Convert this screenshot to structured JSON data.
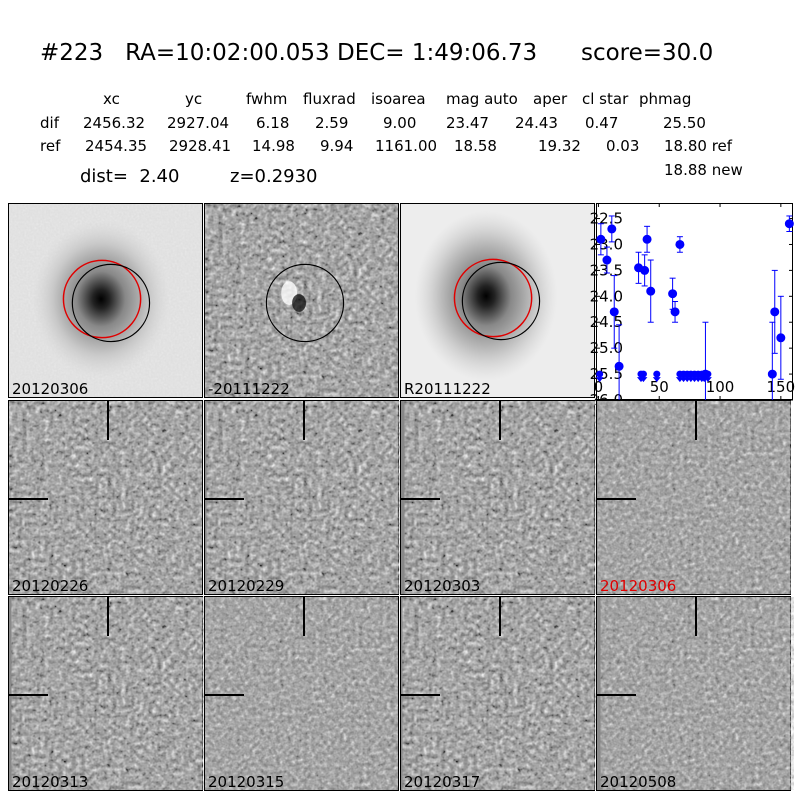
{
  "title": "#223   RA=10:02:00.053 DEC= 1:49:06.73      score=30.0",
  "columns": [
    "xc",
    "yc",
    "fwhm",
    "fluxrad",
    "isoarea",
    "mag auto",
    "aper",
    "cl star",
    "phmag"
  ],
  "rows": [
    {
      "label": "dif",
      "values": [
        "2456.32",
        "2927.04",
        "6.18",
        "2.59",
        "9.00",
        "23.47",
        "24.43",
        "0.47",
        "25.50"
      ]
    },
    {
      "label": "ref",
      "values": [
        "2454.35",
        "2928.41",
        "14.98",
        "9.94",
        "1161.00",
        "18.58",
        "19.32",
        "0.03",
        "18.80 ref"
      ]
    }
  ],
  "phmag_new": "18.88 new",
  "dist": "dist=  2.40",
  "z": "z=0.2930",
  "stamps_top": [
    "20120306",
    "-20111222",
    "R20111222"
  ],
  "stamps_grid": [
    {
      "label": "20120226",
      "highlight": false
    },
    {
      "label": "20120229",
      "highlight": false
    },
    {
      "label": "20120303",
      "highlight": false
    },
    {
      "label": "20120306",
      "highlight": true
    },
    {
      "label": "20120313",
      "highlight": false
    },
    {
      "label": "20120315",
      "highlight": false
    },
    {
      "label": "20120317",
      "highlight": false
    },
    {
      "label": "20120508",
      "highlight": false
    }
  ],
  "colors": {
    "highlight": "#e00000",
    "points": "#0000ff",
    "ref_circle": "#e00000",
    "dif_circle": "#000000"
  },
  "chart_data": {
    "type": "scatter",
    "title": "",
    "xlabel": "",
    "ylabel": "",
    "xlim": [
      -2,
      160
    ],
    "ylim": [
      26.0,
      22.2
    ],
    "y_inverted": true,
    "x_ticks": [
      0,
      50,
      100,
      150
    ],
    "y_ticks": [
      "22.5",
      "23.0",
      "23.5",
      "24.0",
      "24.5",
      "25.0",
      "25.5",
      "26.0"
    ],
    "detections": [
      {
        "x": 2,
        "y": 22.9,
        "err": 0.3
      },
      {
        "x": 7,
        "y": 23.3,
        "err": 0.25
      },
      {
        "x": 11,
        "y": 22.7,
        "err": 0.25
      },
      {
        "x": 13,
        "y": 24.3,
        "err": 0.7
      },
      {
        "x": 17,
        "y": 25.35,
        "err": 0.8
      },
      {
        "x": 33,
        "y": 23.45,
        "err": 0.3
      },
      {
        "x": 38,
        "y": 23.5,
        "err": 0.3
      },
      {
        "x": 40,
        "y": 22.9,
        "err": 0.25
      },
      {
        "x": 43,
        "y": 23.9,
        "err": 0.6
      },
      {
        "x": 61,
        "y": 23.95,
        "err": 0.3
      },
      {
        "x": 63,
        "y": 24.3,
        "err": 0.2
      },
      {
        "x": 67,
        "y": 23.0,
        "err": 0.15
      },
      {
        "x": 88,
        "y": 25.5,
        "err": 1.0
      },
      {
        "x": 143,
        "y": 25.5,
        "err": 1.0
      },
      {
        "x": 145,
        "y": 24.3,
        "err": 0.8
      },
      {
        "x": 150,
        "y": 24.8,
        "err": 0.8
      },
      {
        "x": 157,
        "y": 22.6,
        "err": 0.15
      }
    ],
    "limits": [
      {
        "x": 1,
        "y": 25.5
      },
      {
        "x": 35,
        "y": 25.5
      },
      {
        "x": 37,
        "y": 25.5
      },
      {
        "x": 48,
        "y": 25.5
      },
      {
        "x": 67,
        "y": 25.5
      },
      {
        "x": 70,
        "y": 25.5
      },
      {
        "x": 73,
        "y": 25.5
      },
      {
        "x": 76,
        "y": 25.5
      },
      {
        "x": 79,
        "y": 25.5
      },
      {
        "x": 82,
        "y": 25.5
      },
      {
        "x": 85,
        "y": 25.5
      },
      {
        "x": 87,
        "y": 25.5
      },
      {
        "x": 90,
        "y": 25.5
      }
    ]
  }
}
